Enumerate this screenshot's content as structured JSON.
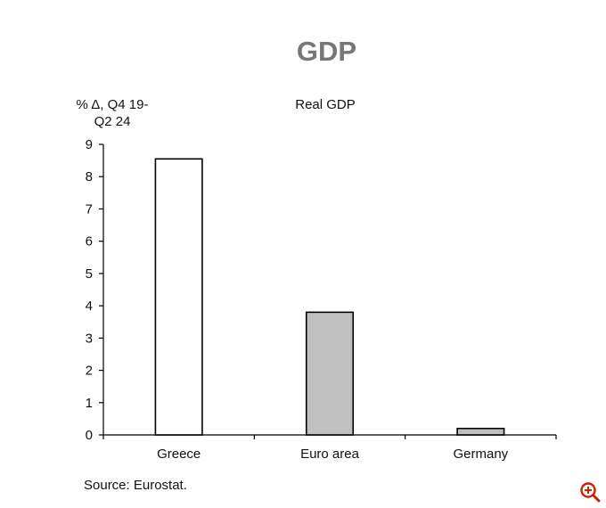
{
  "page": {
    "title": "GDP",
    "source": "Source: Eurostat."
  },
  "chart_data": {
    "type": "bar",
    "title": "Real GDP",
    "ylabel_lines": [
      "% Δ, Q4 19-",
      "Q2 24"
    ],
    "xlabel": "",
    "categories": [
      "Greece",
      "Euro area",
      "Germany"
    ],
    "values": [
      8.55,
      3.8,
      0.2
    ],
    "bar_colors": [
      "#ffffff",
      "#c0c0c0",
      "#c0c0c0"
    ],
    "ylim": [
      0,
      9
    ],
    "yticks": [
      0,
      1,
      2,
      3,
      4,
      5,
      6,
      7,
      8,
      9
    ],
    "grid": false,
    "legend": "none"
  },
  "controls": {
    "zoom_icon": "zoom-in-icon",
    "accent_color": "#cc2200"
  }
}
